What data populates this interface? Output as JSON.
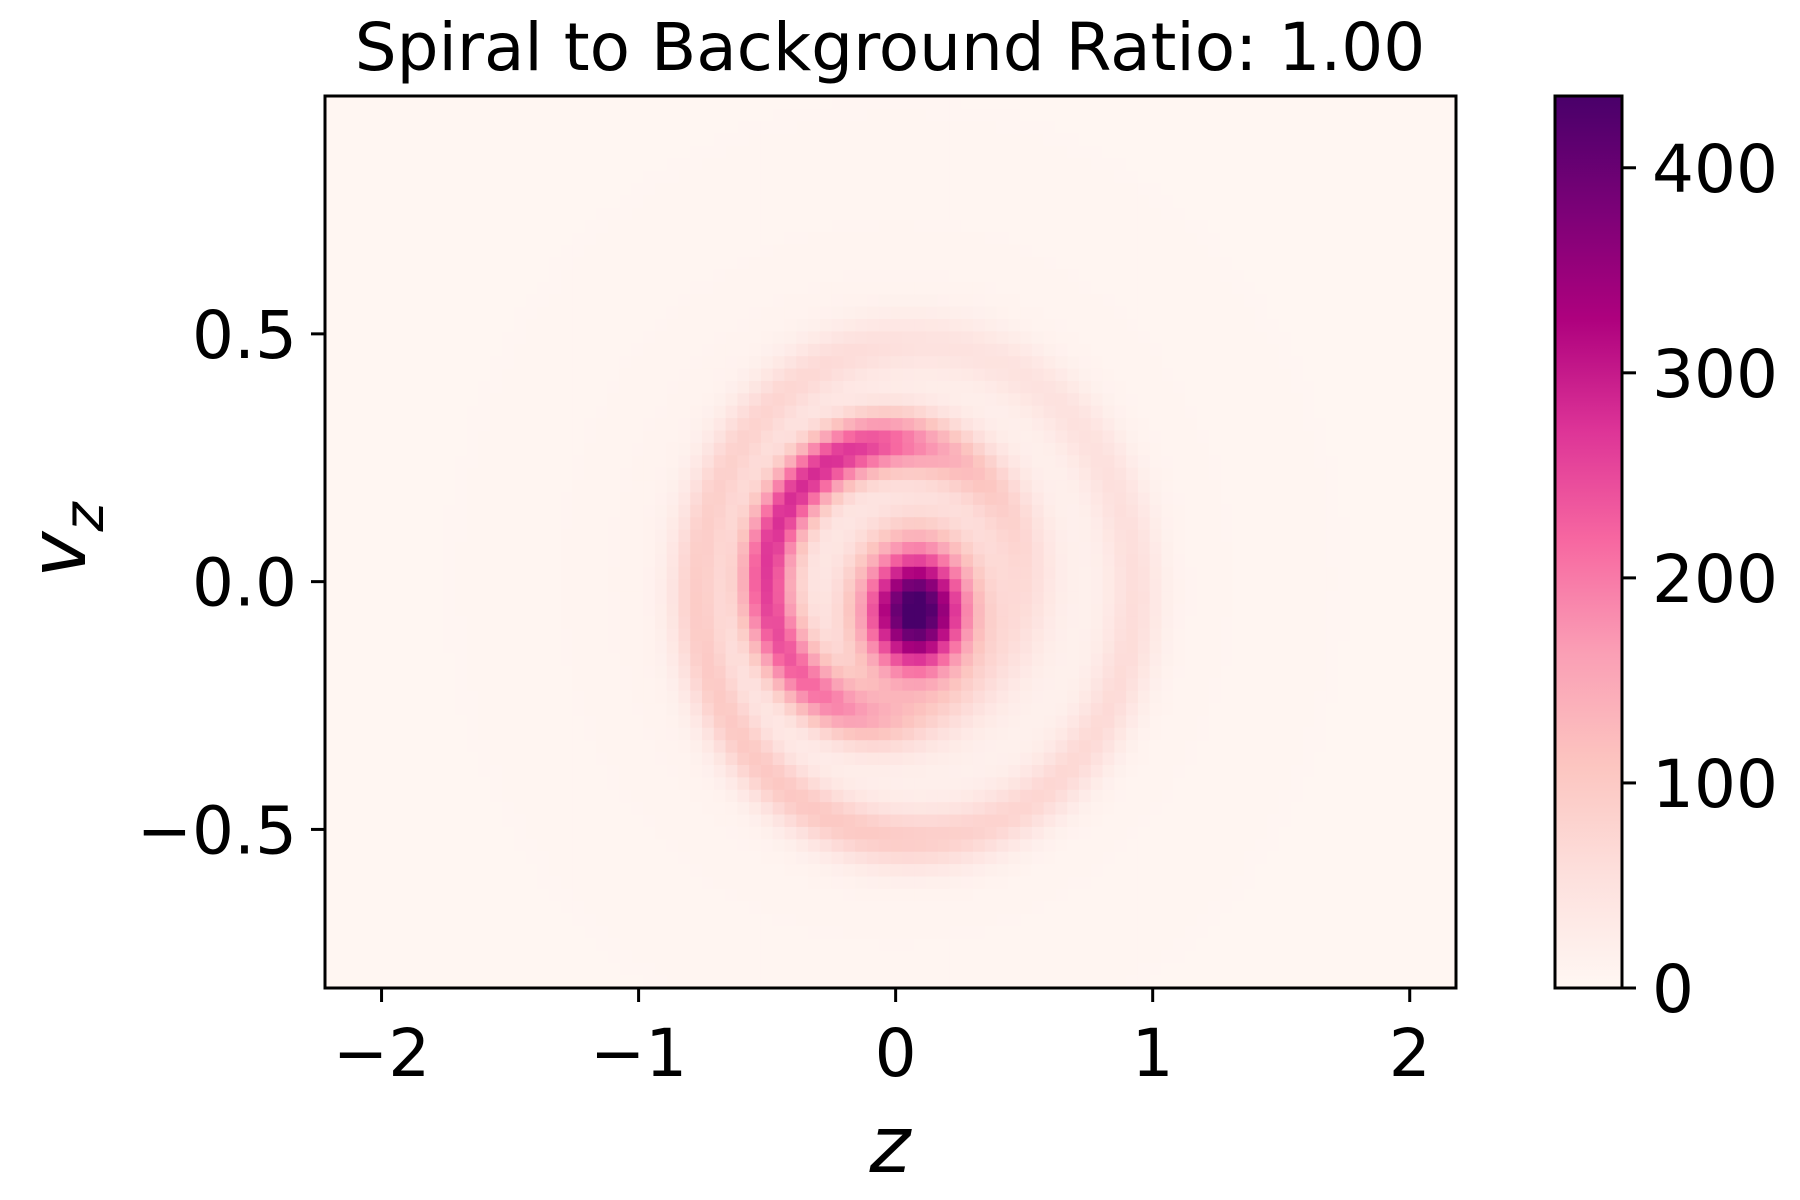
{
  "chart_data": {
    "type": "heatmap",
    "title": "Spiral to Background Ratio: 1.00",
    "xlabel": "z",
    "ylabel": "v_z",
    "xlim": [
      -2.22,
      2.18
    ],
    "ylim": [
      -0.82,
      0.98
    ],
    "xticks": [
      -2,
      -1,
      0,
      1,
      2
    ],
    "xtick_labels": [
      "−2",
      "−1",
      "0",
      "1",
      "2"
    ],
    "yticks": [
      -0.5,
      0.0,
      0.5
    ],
    "ytick_labels": [
      "−0.5",
      "0.0",
      "0.5"
    ],
    "colorbar": {
      "colormap": "RdPu",
      "range": [
        0,
        435
      ],
      "ticks": [
        0,
        100,
        200,
        300,
        400
      ],
      "tick_labels": [
        "0",
        "100",
        "200",
        "300",
        "400"
      ],
      "colors": [
        "#fff7f3",
        "#fde0dd",
        "#fcc5c0",
        "#fa9fb5",
        "#f768a1",
        "#dd3497",
        "#ae017e",
        "#7a0177",
        "#49006a"
      ]
    },
    "grid": false,
    "structure": {
      "description": "phase-space spiral density",
      "core": {
        "z": 0.08,
        "v": -0.06,
        "peak": 430
      },
      "inner_ring": {
        "center_z": 0.0,
        "center_v": 0.0,
        "radius_z": 0.5,
        "radius_v": 0.28,
        "peak": 260
      },
      "outer_ring": {
        "center_z": 0.08,
        "center_v": -0.02,
        "radius_z": 0.85,
        "radius_v": 0.5,
        "peak": 90
      },
      "background": 3
    }
  }
}
